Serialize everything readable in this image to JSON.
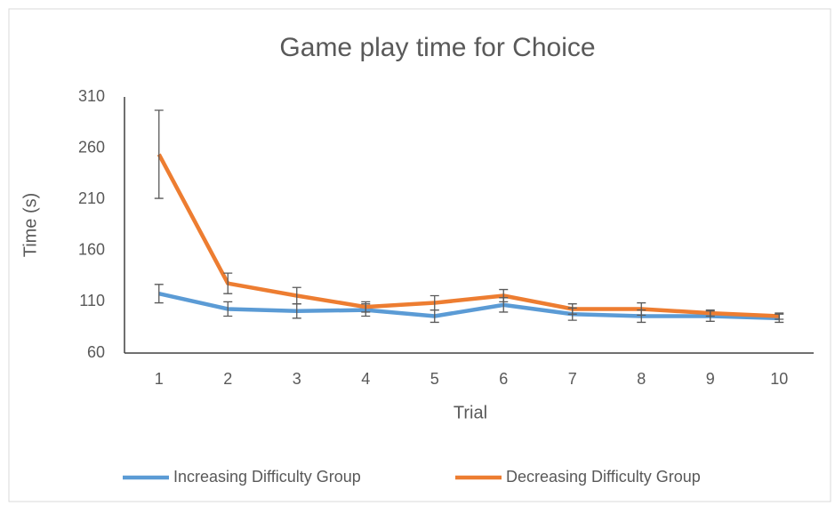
{
  "chart_data": {
    "type": "line",
    "title": "Game play time for Choice",
    "x_label": "Trial",
    "y_label": "Time (s)",
    "categories": [
      "1",
      "2",
      "3",
      "4",
      "5",
      "6",
      "7",
      "8",
      "9",
      "10"
    ],
    "series": [
      {
        "name": "Increasing Difficulty Group",
        "color": "#5b9bd5",
        "values": [
          118,
          103,
          101,
          102,
          96,
          107,
          98,
          96,
          96,
          94
        ],
        "errors": [
          9,
          7,
          7,
          6,
          6,
          7,
          6,
          6,
          5,
          4
        ]
      },
      {
        "name": "Decreasing Difficulty Group",
        "color": "#ed7d31",
        "values": [
          254,
          128,
          116,
          105,
          109,
          116,
          103,
          103,
          99,
          96
        ],
        "errors": [
          43,
          10,
          8,
          5,
          7,
          6,
          5,
          6,
          3,
          3
        ]
      }
    ],
    "ylim": [
      60,
      310
    ],
    "yticks": [
      60,
      110,
      160,
      210,
      260,
      310
    ],
    "grid": false,
    "legend": "bottom"
  }
}
